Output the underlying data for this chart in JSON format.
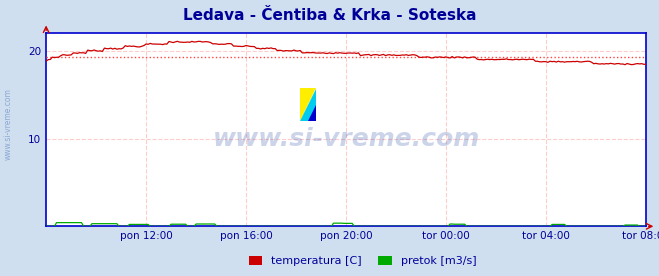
{
  "title": "Ledava - Čentiba & Krka - Soteska",
  "title_color": "#000099",
  "title_fontsize": 11,
  "bg_color": "#d0dff0",
  "plot_bg_color": "#ffffff",
  "spine_color": "#0000cc",
  "watermark_text": "www.si-vreme.com",
  "watermark_color": "#3355aa",
  "watermark_alpha": 0.25,
  "watermark_fontsize": 18,
  "xlim": [
    0,
    288
  ],
  "ylim": [
    0,
    22
  ],
  "yticks": [
    10,
    20
  ],
  "xtick_labels": [
    "pon 12:00",
    "pon 16:00",
    "pon 20:00",
    "tor 00:00",
    "tor 04:00",
    "tor 08:00"
  ],
  "xtick_positions": [
    48,
    96,
    144,
    192,
    240,
    288
  ],
  "grid_color_v": "#ffcccc",
  "grid_color_h": "#ffcccc",
  "avg_line_value": 19.3,
  "avg_line_color": "#ff4444",
  "temp_color": "#cc0000",
  "flow_color": "#00aa00",
  "legend_items": [
    {
      "label": "temperatura [C]",
      "color": "#cc0000"
    },
    {
      "label": "pretok [m3/s]",
      "color": "#00aa00"
    }
  ],
  "watermark_side_color": "#3366aa",
  "watermark_side_alpha": 0.45
}
